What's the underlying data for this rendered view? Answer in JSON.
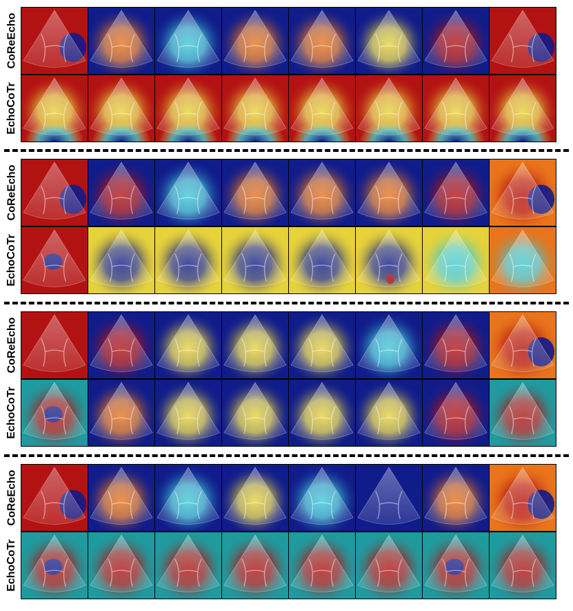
{
  "figure": {
    "method_labels": [
      "CoReEcho",
      "EchoCoTr"
    ],
    "frames_per_row": 8,
    "groups": [
      {
        "rows": [
          {
            "label": "CoReEcho",
            "tiles": [
              {
                "bg": "red",
                "hot": "red",
                "blob": "blue-right"
              },
              {
                "bg": "blue",
                "hot": "orange"
              },
              {
                "bg": "blue",
                "hot": "cyan"
              },
              {
                "bg": "blue",
                "hot": "orange"
              },
              {
                "bg": "blue",
                "hot": "orange"
              },
              {
                "bg": "blue",
                "hot": "yellow"
              },
              {
                "bg": "blue",
                "hot": "red"
              },
              {
                "bg": "red",
                "hot": "red",
                "blob": "blue-right"
              }
            ]
          },
          {
            "label": "EchoCoTr",
            "tiles": [
              {
                "bg": "red",
                "hot": "yellow",
                "band": "bottom-blue"
              },
              {
                "bg": "red",
                "hot": "yellow",
                "band": "bottom-blue"
              },
              {
                "bg": "red",
                "hot": "yellow",
                "band": "bottom-blue"
              },
              {
                "bg": "red",
                "hot": "yellow",
                "band": "bottom-blue"
              },
              {
                "bg": "red",
                "hot": "yellow",
                "band": "bottom-blue"
              },
              {
                "bg": "red",
                "hot": "yellow",
                "band": "bottom-blue"
              },
              {
                "bg": "red",
                "hot": "yellow",
                "band": "bottom-blue"
              },
              {
                "bg": "red",
                "hot": "yellow",
                "band": "bottom-blue"
              }
            ]
          }
        ]
      },
      {
        "rows": [
          {
            "label": "CoReEcho",
            "tiles": [
              {
                "bg": "red",
                "hot": "red",
                "blob": "blue-right"
              },
              {
                "bg": "blue",
                "hot": "red"
              },
              {
                "bg": "blue",
                "hot": "cyan"
              },
              {
                "bg": "blue",
                "hot": "orange"
              },
              {
                "bg": "blue",
                "hot": "orange"
              },
              {
                "bg": "blue",
                "hot": "orange"
              },
              {
                "bg": "blue",
                "hot": "red"
              },
              {
                "bg": "orange",
                "hot": "red",
                "blob": "blue-right"
              }
            ]
          },
          {
            "label": "EchoCoTr",
            "tiles": [
              {
                "bg": "red",
                "hot": "red",
                "blob": "blue-center"
              },
              {
                "bg": "yellow",
                "hot": "blue"
              },
              {
                "bg": "yellow",
                "hot": "blue"
              },
              {
                "bg": "yellow",
                "hot": "blue"
              },
              {
                "bg": "yellow",
                "hot": "blue"
              },
              {
                "bg": "yellow",
                "hot": "blue",
                "blob": "red-center"
              },
              {
                "bg": "yellow",
                "hot": "cyan"
              },
              {
                "bg": "orange",
                "hot": "cyan"
              }
            ]
          }
        ]
      },
      {
        "rows": [
          {
            "label": "CoReEcho",
            "tiles": [
              {
                "bg": "red",
                "hot": "red"
              },
              {
                "bg": "blue",
                "hot": "red"
              },
              {
                "bg": "blue",
                "hot": "yellow"
              },
              {
                "bg": "blue",
                "hot": "yellow"
              },
              {
                "bg": "blue",
                "hot": "yellow"
              },
              {
                "bg": "blue",
                "hot": "cyan"
              },
              {
                "bg": "blue",
                "hot": "red"
              },
              {
                "bg": "orange",
                "hot": "red",
                "blob": "blue-right"
              }
            ]
          },
          {
            "label": "EchoCoTr",
            "tiles": [
              {
                "bg": "teal",
                "hot": "red",
                "blob": "blue-center"
              },
              {
                "bg": "blue",
                "hot": "orange"
              },
              {
                "bg": "blue",
                "hot": "yellow"
              },
              {
                "bg": "blue",
                "hot": "yellow"
              },
              {
                "bg": "blue",
                "hot": "yellow"
              },
              {
                "bg": "blue",
                "hot": "yellow"
              },
              {
                "bg": "blue",
                "hot": "red"
              },
              {
                "bg": "teal",
                "hot": "red"
              }
            ]
          }
        ]
      },
      {
        "rows": [
          {
            "label": "CoReEcho",
            "tiles": [
              {
                "bg": "red",
                "hot": "red",
                "blob": "blue-right"
              },
              {
                "bg": "blue",
                "hot": "orange"
              },
              {
                "bg": "blue",
                "hot": "cyan"
              },
              {
                "bg": "blue",
                "hot": "yellow"
              },
              {
                "bg": "blue",
                "hot": "cyan"
              },
              {
                "bg": "blue",
                "hot": "blue"
              },
              {
                "bg": "blue",
                "hot": "orange"
              },
              {
                "bg": "orange",
                "hot": "red",
                "blob": "blue-right"
              }
            ]
          },
          {
            "label": "EchoCoTr",
            "tiles": [
              {
                "bg": "teal",
                "hot": "red",
                "blob": "blue-center"
              },
              {
                "bg": "teal",
                "hot": "red"
              },
              {
                "bg": "teal",
                "hot": "red"
              },
              {
                "bg": "teal",
                "hot": "red"
              },
              {
                "bg": "teal",
                "hot": "red"
              },
              {
                "bg": "teal",
                "hot": "red"
              },
              {
                "bg": "teal",
                "hot": "red",
                "blob": "blue-center"
              },
              {
                "bg": "teal",
                "hot": "red"
              }
            ]
          }
        ]
      }
    ],
    "colors": {
      "red": "#b31212",
      "orange": "#e8741b",
      "yellow": "#e6d23a",
      "cyan": "#3fc9d6",
      "teal": "#1f9a9e",
      "blue": "#101c8a",
      "divider": "#000000"
    }
  }
}
